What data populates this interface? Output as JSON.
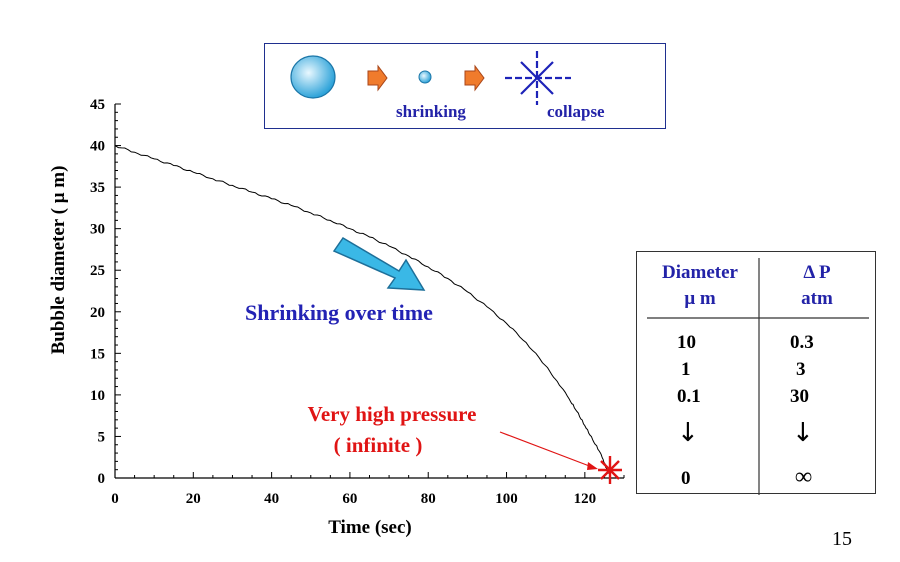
{
  "chart_data": {
    "type": "line",
    "title": "",
    "xlabel": "Time (sec)",
    "ylabel": "Bubble diameter ( μ m)",
    "xlim": [
      0,
      130
    ],
    "ylim": [
      0,
      45
    ],
    "x_ticks": [
      "0",
      "20",
      "40",
      "60",
      "80",
      "100",
      "120"
    ],
    "y_ticks": [
      "0",
      "5",
      "10",
      "15",
      "20",
      "25",
      "30",
      "35",
      "40",
      "45"
    ],
    "grid": false,
    "series": [
      {
        "color": "#000000",
        "x": [
          0,
          5,
          10,
          15,
          20,
          25,
          30,
          35,
          40,
          45,
          50,
          55,
          60,
          65,
          70,
          75,
          80,
          85,
          90,
          95,
          100,
          105,
          110,
          113,
          116,
          118,
          120,
          122,
          124,
          125,
          126
        ],
        "y": [
          40.0,
          39.2,
          38.4,
          37.6,
          36.8,
          36.0,
          35.2,
          34.4,
          33.6,
          32.8,
          31.9,
          31.0,
          30.0,
          29.0,
          27.9,
          26.7,
          25.4,
          24.0,
          22.4,
          20.6,
          18.6,
          16.3,
          13.5,
          11.6,
          9.5,
          8.0,
          6.3,
          4.6,
          3.0,
          1.8,
          0.5
        ]
      }
    ]
  },
  "legend": {
    "shrinking_label": "shrinking",
    "collapse_label": "collapse"
  },
  "annotations": {
    "trend_text": "Shrinking over time",
    "pressure_line1": "Very high pressure",
    "pressure_line2": "( infinite )"
  },
  "table": {
    "col1_header_line1": "Diameter",
    "col1_header_line2": "μ m",
    "col2_header_line1": "Δ P",
    "col2_header_line2": "atm",
    "rows": [
      {
        "diameter": "10",
        "pressure": "0.3"
      },
      {
        "diameter": "1",
        "pressure": "3"
      },
      {
        "diameter": "0.1",
        "pressure": "30"
      }
    ],
    "arrow_symbol": "↓",
    "final_diameter": "0",
    "final_pressure": "∞"
  },
  "page_number": "15",
  "colors": {
    "accent_blue": "#2323a8",
    "alert_red": "#e01414",
    "arrow_cyan": "#3ab8e6",
    "arrow_orange": "#f07b2c"
  }
}
